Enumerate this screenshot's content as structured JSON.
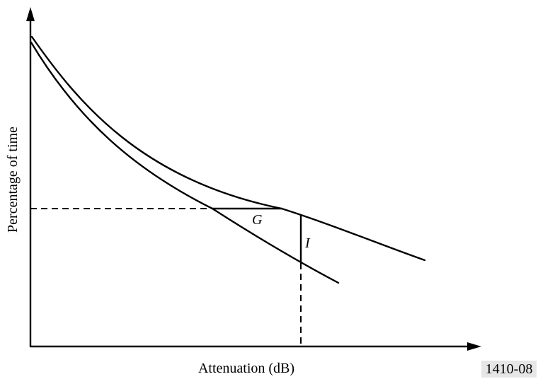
{
  "diagram": {
    "x_axis_label": "Attenuation (dB)",
    "y_axis_label": "Percentage of time",
    "gap_label_g": "G",
    "gap_label_i": "I",
    "figure_id": "1410-08"
  }
}
